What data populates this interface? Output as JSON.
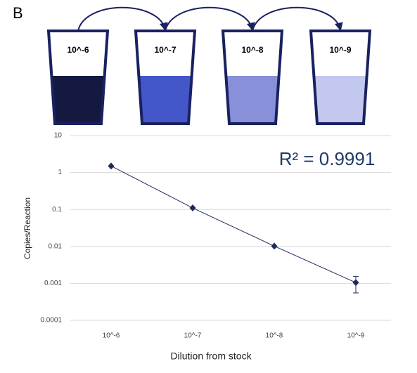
{
  "panel_label": "B",
  "tubes": [
    {
      "label": "10^-6",
      "color": "#141a3f"
    },
    {
      "label": "10^-7",
      "color": "#4457c8"
    },
    {
      "label": "10^-8",
      "color": "#8890d9"
    },
    {
      "label": "10^-9",
      "color": "#c3c8ee"
    }
  ],
  "chart_data": {
    "type": "line",
    "categories": [
      "10^-6",
      "10^-7",
      "10^-8",
      "10^-9"
    ],
    "series": [
      {
        "color": "#1f2a5a",
        "values": [
          1.5,
          0.11,
          0.0102,
          0.00105
        ],
        "errors": [
          null,
          null,
          null,
          0.0005
        ]
      }
    ],
    "ylim": [
      0.0001,
      10
    ],
    "yticks": [
      0.0001,
      0.001,
      0.01,
      0.1,
      1,
      10
    ],
    "log_y": true,
    "grid": true,
    "x_label": "Dilution from stock",
    "y_label": "Copies/Reaction",
    "annotation": "R² = 0.9991"
  }
}
